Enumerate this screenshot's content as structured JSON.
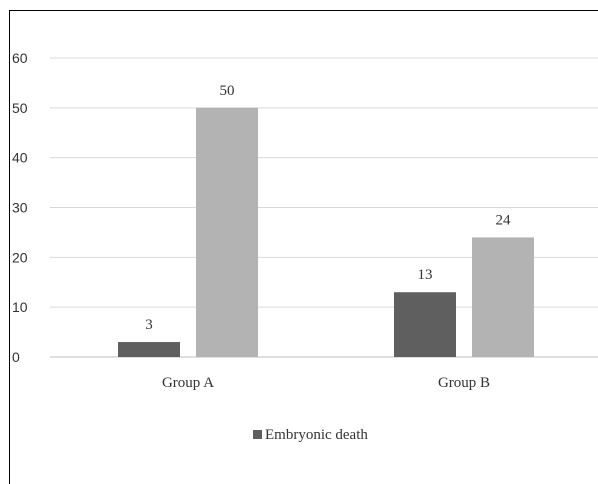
{
  "chart_data": {
    "type": "bar",
    "categories": [
      "Group A",
      "Group B"
    ],
    "series": [
      {
        "name": "Embryonic death",
        "values": [
          3,
          13
        ],
        "color": "#5f5f5f"
      },
      {
        "name": "",
        "values": [
          50,
          24
        ],
        "color": "#b3b3b3"
      }
    ],
    "ylim": [
      0,
      60
    ],
    "yticks": [
      "0",
      "10",
      "20",
      "30",
      "40",
      "50",
      "60"
    ],
    "grid": true,
    "legend": "bottom",
    "legend_entries": [
      {
        "label": "Embryonic death",
        "color": "#5f5f5f"
      }
    ],
    "title": "",
    "xlabel": "",
    "ylabel": ""
  }
}
